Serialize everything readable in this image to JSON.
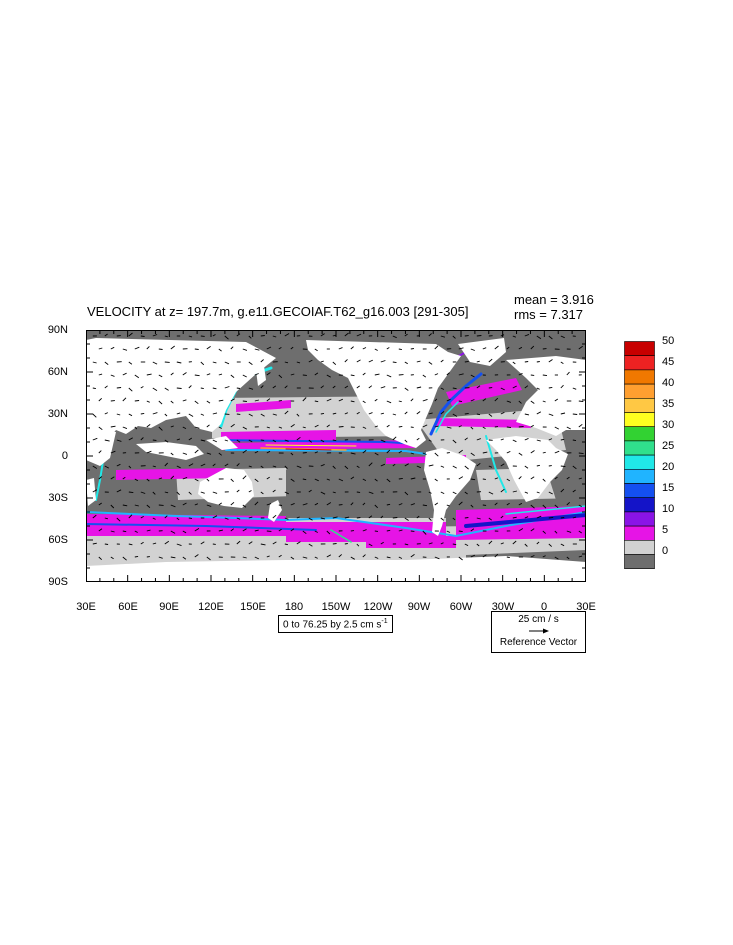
{
  "title": "VELOCITY at z= 197.7m, g.e11.GECOIAF.T62_g16.003 [291-305]",
  "stats": {
    "mean": "mean = 3.916",
    "rms": "rms = 7.317"
  },
  "lat_labels": [
    "90N",
    "60N",
    "30N",
    "0",
    "30S",
    "60S",
    "90S"
  ],
  "lon_labels": [
    "30E",
    "60E",
    "90E",
    "120E",
    "150E",
    "180",
    "150W",
    "120W",
    "90W",
    "60W",
    "30W",
    "0",
    "30E"
  ],
  "contour_info": "0 to 76.25 by 2.5 cm s",
  "contour_info_sup": "-1",
  "ref_vector": {
    "magnitude": "25 cm / s",
    "label": "Reference Vector"
  },
  "colorbar": {
    "labels": [
      "50",
      "45",
      "40",
      "35",
      "30",
      "25",
      "20",
      "15",
      "10",
      "5",
      "0"
    ],
    "colors": [
      "#c80000",
      "#ee2222",
      "#f07800",
      "#ff9f30",
      "#ffc844",
      "#ffff20",
      "#32d232",
      "#30e08c",
      "#20e8e8",
      "#20b4ff",
      "#1450f0",
      "#1414c8",
      "#8a14e6",
      "#e614e6",
      "#d2d2d2",
      "#6e6e6e"
    ]
  },
  "colors": {
    "ocean_base": "#6e6e6e",
    "land": "#ffffff",
    "light": "#d2d2d2",
    "magenta": "#e614e6"
  }
}
